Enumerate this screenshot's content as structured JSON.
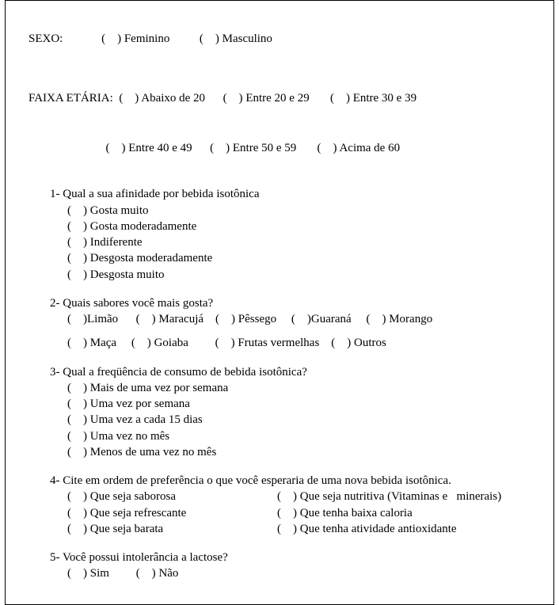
{
  "sexo": {
    "label": "SEXO:",
    "options": [
      "Feminino",
      "Masculino"
    ]
  },
  "faixa": {
    "label": "FAIXA ETÁRIA:",
    "row1": [
      "Abaixo de 20",
      "Entre 20 e 29",
      "Entre 30 e 39"
    ],
    "row2": [
      "Entre 40 e 49",
      "Entre 50 e 59",
      "Acima de 60"
    ]
  },
  "q1": {
    "num": "1-",
    "text": "Qual a sua afinidade por bebida isotônica",
    "opts": [
      "Gosta muito",
      "Gosta moderadamente",
      "Indiferente",
      "Desgosta moderadamente",
      "Desgosta muito"
    ]
  },
  "q2": {
    "num": "2-",
    "text": "Quais sabores você mais gosta?",
    "row1": [
      "Limão",
      "Maracujá",
      "Pêssego",
      "Guaraná",
      "Morango"
    ],
    "row2": [
      "Maça",
      "Goiaba",
      "Frutas vermelhas",
      "Outros"
    ]
  },
  "q3": {
    "num": "3-",
    "text": "Qual a freqüência de consumo de bebida isotônica?",
    "opts": [
      "Mais de uma vez por semana",
      "Uma vez por semana",
      "Uma vez a cada 15 dias",
      "Uma vez no mês",
      "Menos de uma vez no mês"
    ]
  },
  "q4": {
    "num": "4-",
    "text": " Cite em ordem de preferência o que você esperaria de uma nova bebida isotônica.",
    "pairs": [
      {
        "l": "Que seja saborosa",
        "r": "Que seja nutritiva (Vitaminas e   minerais)"
      },
      {
        "l": "Que seja refrescante",
        "r": "Que tenha baixa caloria"
      },
      {
        "l": "Que seja barata",
        "r": "Que tenha atividade antioxidante"
      }
    ]
  },
  "q5": {
    "num": "5-",
    "text": "Você possui intolerância a lactose?",
    "opts": [
      "Sim",
      "Não"
    ]
  },
  "cb": {
    "open": "(    ) ",
    "openTight": "(    )"
  }
}
